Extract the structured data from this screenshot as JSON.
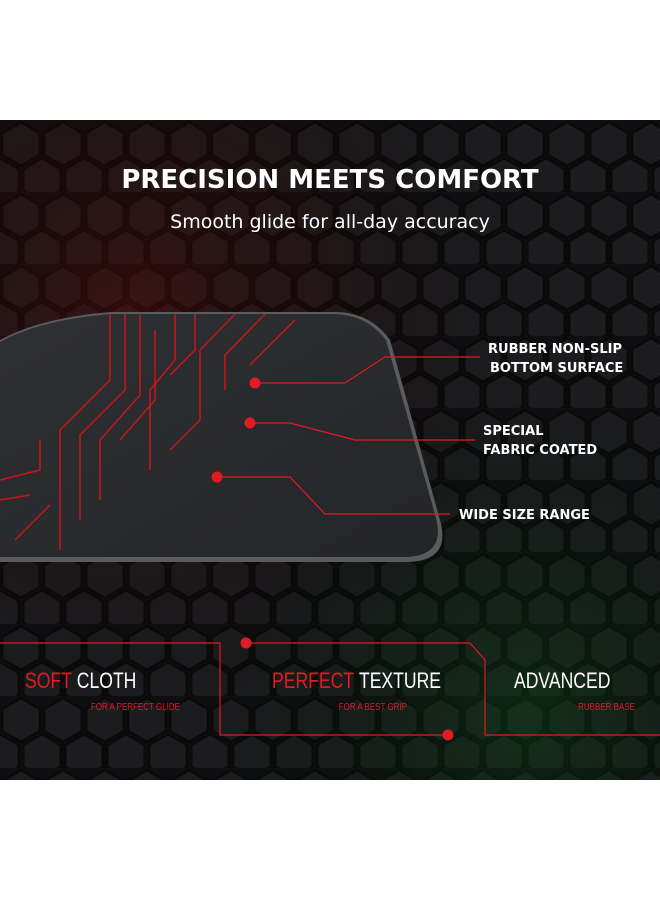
{
  "header": {
    "title": "PRECISION MEETS COMFORT",
    "subtitle": "Smooth glide for all-day accuracy"
  },
  "callouts": [
    {
      "lines": [
        "RUBBER NON-SLIP",
        "BOTTOM SURFACE"
      ]
    },
    {
      "lines": [
        "SPECIAL",
        "FABRIC COATED"
      ]
    },
    {
      "lines": [
        "WIDE SIZE RANGE"
      ]
    }
  ],
  "features": [
    {
      "highlight": "SOFT",
      "rest": "CLOTH",
      "caption": "FOR A PERFECT GLIDE"
    },
    {
      "highlight": "PERFECT",
      "rest": "TEXTURE",
      "caption": "FOR A BEST GRIP"
    },
    {
      "rest": "ADVANCED",
      "caption": "RUBBER BASE"
    }
  ]
}
